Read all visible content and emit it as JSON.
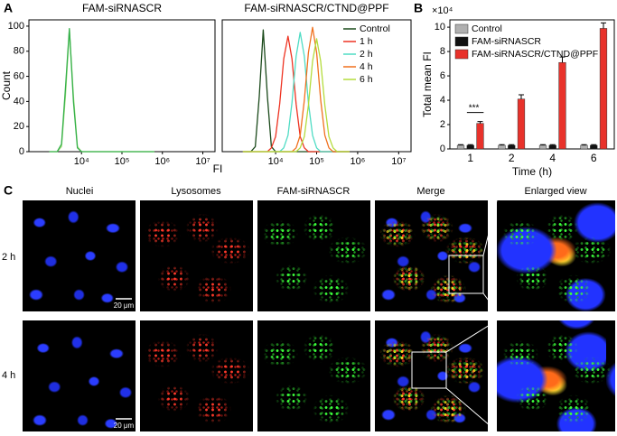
{
  "panel_labels": [
    "A",
    "B",
    "C"
  ],
  "chart_data": [
    {
      "type": "line",
      "title": "FAM-siRNASCR",
      "x_label": "FI",
      "y_label": "Count",
      "log_x": true,
      "x": [
        1600,
        2000,
        2500,
        3200,
        4000,
        5000,
        6300,
        7900,
        10000,
        12600,
        15800,
        20000,
        25100,
        31600,
        39800,
        50100,
        63100,
        79400,
        100000,
        125900,
        158500,
        199500,
        251200,
        316200,
        398100,
        501200,
        631000
      ],
      "series": [
        {
          "color": "#a6e07e",
          "values": [
            0,
            0,
            0,
            4,
            44,
            97,
            44,
            4,
            0,
            0,
            0,
            0,
            0,
            0,
            0,
            0,
            0,
            0,
            0,
            0,
            0,
            0,
            0,
            0,
            0,
            0,
            0
          ]
        },
        {
          "color": "#34b04a",
          "values": [
            0,
            0,
            0,
            6,
            50,
            98,
            40,
            3,
            0,
            0,
            0,
            0,
            0,
            0,
            0,
            0,
            0,
            0,
            0,
            0,
            0,
            0,
            0,
            0,
            0,
            0,
            0
          ]
        }
      ],
      "xlim": [
        500,
        20000000
      ],
      "xticks": [
        {
          "value": 10000,
          "label": "10⁴"
        },
        {
          "value": 100000,
          "label": "10⁵"
        },
        {
          "value": 1000000,
          "label": "10⁶"
        },
        {
          "value": 10000000,
          "label": "10⁷"
        }
      ],
      "ylim": [
        0,
        105
      ],
      "yticks": [
        0,
        20,
        40,
        60,
        80,
        100
      ]
    },
    {
      "type": "line",
      "title": "FAM-siRNASCR/CTND@PPF",
      "log_x": true,
      "legend": "upper right",
      "x": [
        1600,
        2000,
        2500,
        3200,
        4000,
        5000,
        6300,
        7900,
        10000,
        12600,
        15800,
        20000,
        25100,
        31600,
        39800,
        50100,
        63100,
        79400,
        100000,
        125900,
        158500,
        199500,
        251200,
        316200,
        398100,
        501200,
        631000
      ],
      "series": [
        {
          "name": "Control",
          "color": "#1b4a1b",
          "values": [
            0,
            0,
            0,
            4,
            44,
            97,
            44,
            4,
            0,
            0,
            0,
            0,
            0,
            0,
            0,
            0,
            0,
            0,
            0,
            0,
            0,
            0,
            0,
            0,
            0,
            0,
            0
          ]
        },
        {
          "name": "1 h",
          "color": "#ee3322",
          "values": [
            0,
            0,
            0,
            0,
            0,
            0,
            0,
            3,
            12,
            38,
            74,
            92,
            74,
            38,
            12,
            3,
            0,
            0,
            0,
            0,
            0,
            0,
            0,
            0,
            0,
            0,
            0
          ]
        },
        {
          "name": "2 h",
          "color": "#4fdcc4",
          "values": [
            0,
            0,
            0,
            0,
            0,
            0,
            0,
            0,
            0,
            0,
            3,
            13,
            39,
            76,
            95,
            76,
            39,
            13,
            3,
            0,
            0,
            0,
            0,
            0,
            0,
            0,
            0
          ]
        },
        {
          "name": "4 h",
          "color": "#f0701e",
          "values": [
            0,
            0,
            0,
            0,
            0,
            0,
            0,
            0,
            0,
            0,
            0,
            0,
            0,
            3,
            13,
            41,
            79,
            99,
            79,
            41,
            13,
            3,
            0,
            0,
            0,
            0,
            0
          ]
        },
        {
          "name": "6 h",
          "color": "#b4dc3c",
          "values": [
            0,
            0,
            0,
            0,
            0,
            0,
            0,
            0,
            0,
            0,
            0,
            0,
            0,
            0,
            3,
            12,
            37,
            72,
            90,
            72,
            37,
            12,
            3,
            0,
            0,
            0,
            0
          ]
        }
      ],
      "xlim": [
        500,
        20000000
      ],
      "xticks": [
        {
          "value": 10000,
          "label": "10⁴"
        },
        {
          "value": 100000,
          "label": "10⁵"
        },
        {
          "value": 1000000,
          "label": "10⁶"
        },
        {
          "value": 10000000,
          "label": "10⁷"
        }
      ],
      "ylim": [
        0,
        105
      ]
    },
    {
      "type": "bar",
      "x_label": "Time (h)",
      "y_label": "Total mean FI",
      "axis_multiplier": "×10⁴",
      "legend": "upper left",
      "annotation": "***",
      "categories": [
        "1",
        "2",
        "4",
        "6"
      ],
      "series": [
        {
          "name": "Control",
          "color": "#b0b0b0",
          "values": [
            0.3,
            0.3,
            0.3,
            0.3
          ],
          "errors": [
            0.05,
            0.05,
            0.05,
            0.05
          ]
        },
        {
          "name": "FAM-siRNASCR",
          "color": "#111111",
          "values": [
            0.3,
            0.3,
            0.3,
            0.3
          ],
          "errors": [
            0.05,
            0.05,
            0.05,
            0.05
          ]
        },
        {
          "name": "FAM-siRNASCR/CTND@PPF",
          "color": "#e8322b",
          "values": [
            2.1,
            4.1,
            7.1,
            9.9
          ],
          "errors": [
            0.15,
            0.35,
            0.45,
            0.45
          ]
        }
      ],
      "ylim": [
        0,
        10.6
      ],
      "yticks": [
        0,
        2,
        4,
        6,
        8,
        10
      ]
    }
  ],
  "panel_c": {
    "columns": [
      "Nuclei",
      "Lysosomes",
      "FAM-siRNASCR",
      "Merge",
      "Enlarged view"
    ],
    "rows": [
      "2 h",
      "4 h"
    ],
    "scale_bar": "20 μm"
  }
}
